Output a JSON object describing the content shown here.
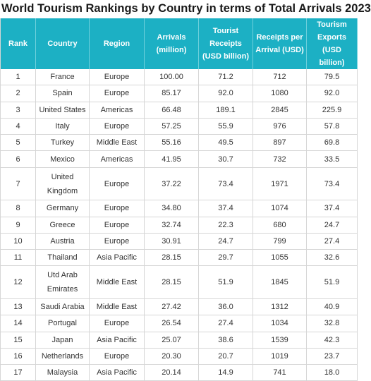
{
  "title": "World Tourism Rankings by Country in terms of Total Arrivals 2023",
  "headers": [
    "Rank",
    "Country",
    "Region",
    "Arrivals (million)",
    "Tourist Receipts (USD billion)",
    "Receipts per Arrival (USD)",
    "Tourism Exports (USD billion)"
  ],
  "rows": [
    {
      "rank": "1",
      "country": "France",
      "region": "Europe",
      "arrivals": "100.00",
      "receipts": "71.2",
      "per_arrival": "712",
      "exports": "79.5"
    },
    {
      "rank": "2",
      "country": "Spain",
      "region": "Europe",
      "arrivals": "85.17",
      "receipts": "92.0",
      "per_arrival": "1080",
      "exports": "92.0"
    },
    {
      "rank": "3",
      "country": "United States",
      "region": "Americas",
      "arrivals": "66.48",
      "receipts": "189.1",
      "per_arrival": "2845",
      "exports": "225.9"
    },
    {
      "rank": "4",
      "country": "Italy",
      "region": "Europe",
      "arrivals": "57.25",
      "receipts": "55.9",
      "per_arrival": "976",
      "exports": "57.8"
    },
    {
      "rank": "5",
      "country": "Turkey",
      "region": "Middle East",
      "arrivals": "55.16",
      "receipts": "49.5",
      "per_arrival": "897",
      "exports": "69.8"
    },
    {
      "rank": "6",
      "country": "Mexico",
      "region": "Americas",
      "arrivals": "41.95",
      "receipts": "30.7",
      "per_arrival": "732",
      "exports": "33.5"
    },
    {
      "rank": "7",
      "country": "United Kingdom",
      "region": "Europe",
      "arrivals": "37.22",
      "receipts": "73.4",
      "per_arrival": "1971",
      "exports": "73.4"
    },
    {
      "rank": "8",
      "country": "Germany",
      "region": "Europe",
      "arrivals": "34.80",
      "receipts": "37.4",
      "per_arrival": "1074",
      "exports": "37.4"
    },
    {
      "rank": "9",
      "country": "Greece",
      "region": "Europe",
      "arrivals": "32.74",
      "receipts": "22.3",
      "per_arrival": "680",
      "exports": "24.7"
    },
    {
      "rank": "10",
      "country": "Austria",
      "region": "Europe",
      "arrivals": "30.91",
      "receipts": "24.7",
      "per_arrival": "799",
      "exports": "27.4"
    },
    {
      "rank": "11",
      "country": "Thailand",
      "region": "Asia Pacific",
      "arrivals": "28.15",
      "receipts": "29.7",
      "per_arrival": "1055",
      "exports": "32.6"
    },
    {
      "rank": "12",
      "country": "Utd Arab Emirates",
      "region": "Middle East",
      "arrivals": "28.15",
      "receipts": "51.9",
      "per_arrival": "1845",
      "exports": "51.9"
    },
    {
      "rank": "13",
      "country": "Saudi Arabia",
      "region": "Middle East",
      "arrivals": "27.42",
      "receipts": "36.0",
      "per_arrival": "1312",
      "exports": "40.9"
    },
    {
      "rank": "14",
      "country": "Portugal",
      "region": "Europe",
      "arrivals": "26.54",
      "receipts": "27.4",
      "per_arrival": "1034",
      "exports": "32.8"
    },
    {
      "rank": "15",
      "country": "Japan",
      "region": "Asia Pacific",
      "arrivals": "25.07",
      "receipts": "38.6",
      "per_arrival": "1539",
      "exports": "42.3"
    },
    {
      "rank": "16",
      "country": "Netherlands",
      "region": "Europe",
      "arrivals": "20.30",
      "receipts": "20.7",
      "per_arrival": "1019",
      "exports": "23.7"
    },
    {
      "rank": "17",
      "country": "Malaysia",
      "region": "Asia Pacific",
      "arrivals": "20.14",
      "receipts": "14.9",
      "per_arrival": "741",
      "exports": "18.0"
    }
  ]
}
